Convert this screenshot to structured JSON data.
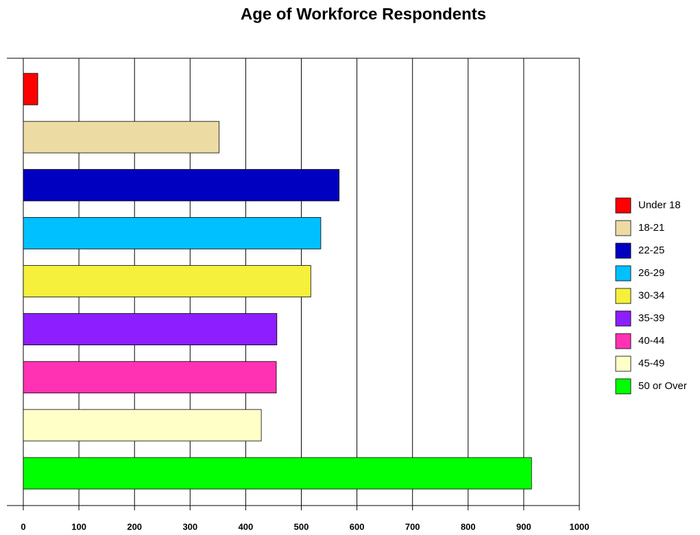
{
  "chart_data": {
    "type": "hbar",
    "title": "Age of Workforce Respondents",
    "categories": [
      "Under 18",
      "18-21",
      "22-25",
      "26-29",
      "30-34",
      "35-39",
      "40-44",
      "45-49",
      "50 or Over"
    ],
    "values": [
      26,
      352,
      568,
      535,
      517,
      456,
      455,
      428,
      914
    ],
    "colors": [
      "#ff0000",
      "#ecdca4",
      "#0000c0",
      "#00c0ff",
      "#f5f03c",
      "#8c1eff",
      "#ff32b4",
      "#ffffc8",
      "#00ff00"
    ],
    "xlim": [
      0,
      1000
    ],
    "xticks": [
      0,
      100,
      200,
      300,
      400,
      500,
      600,
      700,
      800,
      900,
      1000
    ],
    "grid": true,
    "legend": "right"
  }
}
